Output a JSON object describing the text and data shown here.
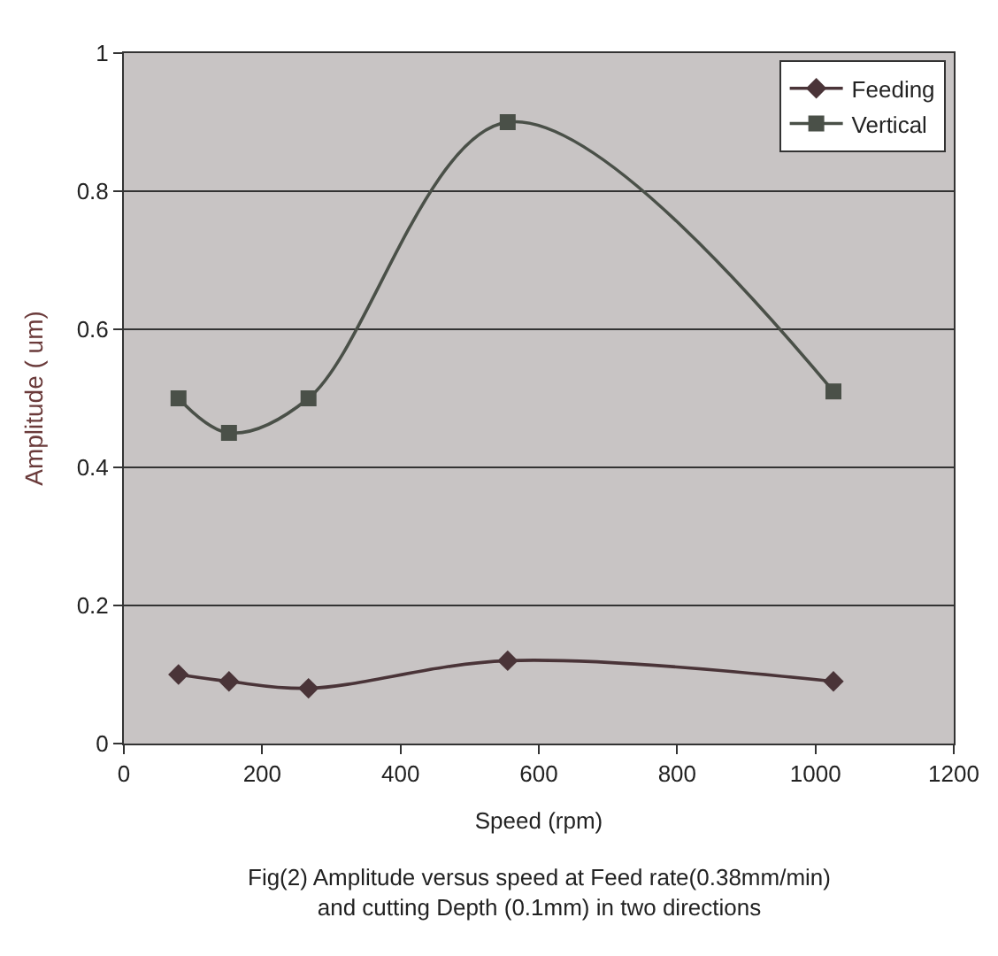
{
  "chart_data": {
    "type": "line",
    "xlabel": "Speed (rpm)",
    "ylabel": "Amplitude ( um)",
    "annotations": [
      "Fig(2) Amplitude versus speed at Feed rate(0.38mm/min)\nand cutting Depth (0.1mm) in two directions"
    ],
    "series": [
      {
        "name": "Feeding",
        "color": "#4a3438",
        "marker": "diamond",
        "x": [
          79,
          152,
          267,
          555,
          1026
        ],
        "values": [
          0.1,
          0.09,
          0.08,
          0.12,
          0.09
        ]
      },
      {
        "name": "Vertical",
        "color": "#4a5048",
        "marker": "square",
        "x": [
          79,
          152,
          267,
          555,
          1026
        ],
        "values": [
          0.5,
          0.45,
          0.5,
          0.9,
          0.51
        ]
      }
    ],
    "xlim": [
      0,
      1200
    ],
    "xticks": [
      0,
      200,
      400,
      600,
      800,
      1000,
      1200
    ],
    "ylim": [
      0,
      1
    ],
    "yticks": [
      0,
      0.2,
      0.4,
      0.6,
      0.8,
      1
    ],
    "grid": "y",
    "legend": "top right",
    "line_style": "solid"
  }
}
